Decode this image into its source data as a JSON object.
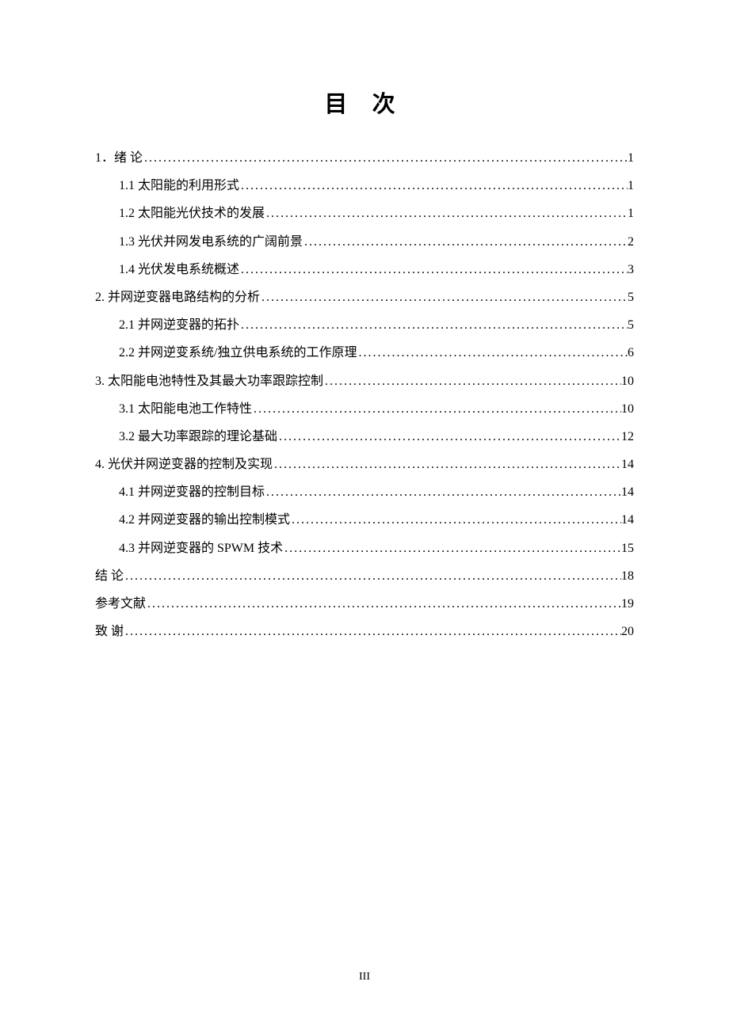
{
  "title": "目  次",
  "page_number": "III",
  "colors": {
    "background": "#ffffff",
    "text": "#000000"
  },
  "typography": {
    "title_fontsize": 29,
    "entry_fontsize": 16,
    "line_height": 2.2,
    "font_family": "SimSun"
  },
  "toc": [
    {
      "level": 1,
      "label": "1．绪  论",
      "page": "1"
    },
    {
      "level": 2,
      "label": "1.1  太阳能的利用形式",
      "page": "1"
    },
    {
      "level": 2,
      "label": "1.2  太阳能光伏技术的发展",
      "page": "1"
    },
    {
      "level": 2,
      "label": "1.3  光伏并网发电系统的广阔前景",
      "page": "2"
    },
    {
      "level": 2,
      "label": "1.4  光伏发电系统概述",
      "page": "3"
    },
    {
      "level": 1,
      "label": "2.  并网逆变器电路结构的分析",
      "page": "5"
    },
    {
      "level": 2,
      "label": "2.1  并网逆变器的拓扑",
      "page": "5"
    },
    {
      "level": 2,
      "label": "2.2  并网逆变系统/独立供电系统的工作原理",
      "page": "6"
    },
    {
      "level": 1,
      "label": "3.  太阳能电池特性及其最大功率跟踪控制",
      "page": "10"
    },
    {
      "level": 2,
      "label": "3.1  太阳能电池工作特性",
      "page": "10"
    },
    {
      "level": 2,
      "label": "3.2  最大功率跟踪的理论基础",
      "page": "12"
    },
    {
      "level": 1,
      "label": "4.  光伏并网逆变器的控制及实现",
      "page": "14"
    },
    {
      "level": 2,
      "label": "4.1  并网逆变器的控制目标",
      "page": "14"
    },
    {
      "level": 2,
      "label": "4.2  并网逆变器的输出控制模式",
      "page": "14"
    },
    {
      "level": 2,
      "label": "4.3  并网逆变器的 SPWM 技术",
      "page": "15"
    },
    {
      "level": 1,
      "label": "结    论",
      "page": "18"
    },
    {
      "level": 1,
      "label": "参考文献",
      "page": "19"
    },
    {
      "level": 1,
      "label": "致    谢",
      "page": "20"
    }
  ]
}
